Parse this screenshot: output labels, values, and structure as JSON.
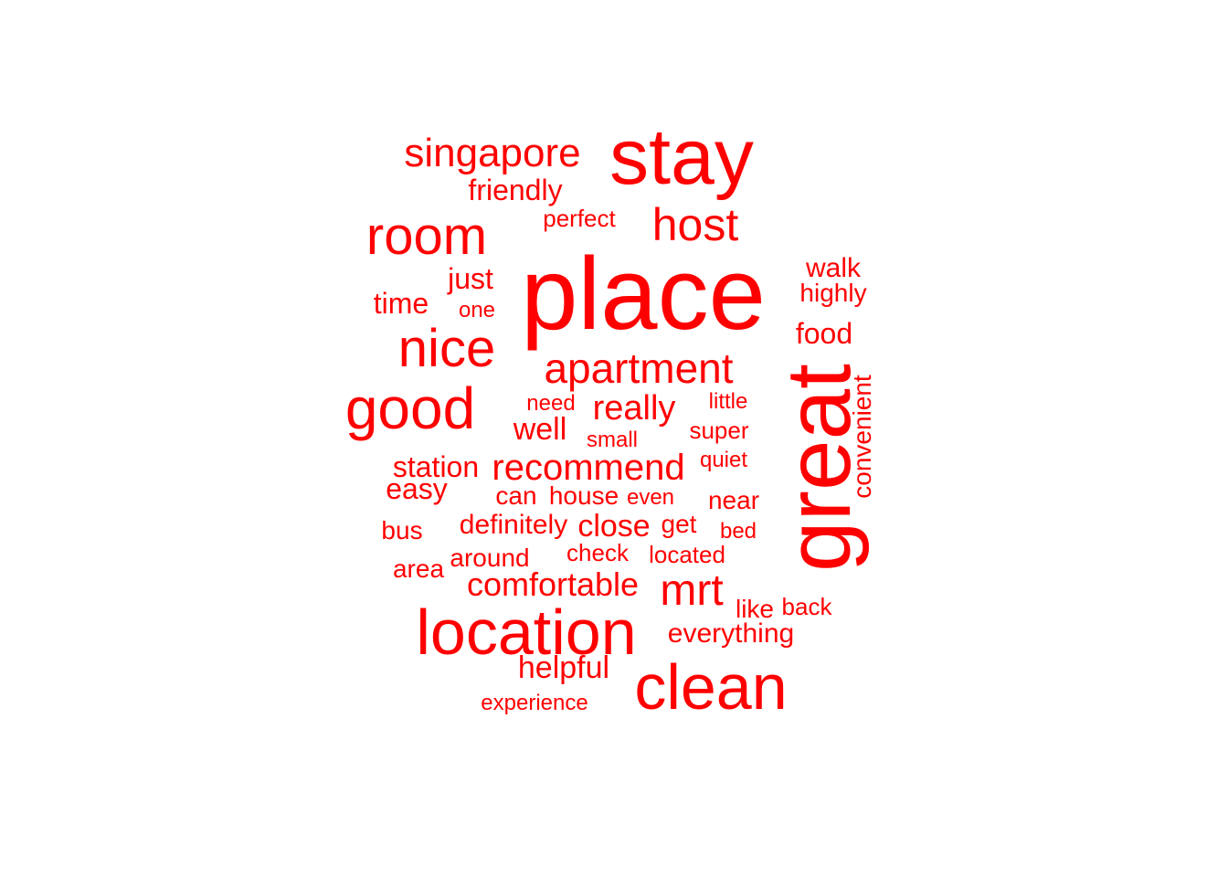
{
  "color": "#ff0000",
  "words": [
    {
      "text": "place",
      "rotated": false
    },
    {
      "text": "stay",
      "rotated": false
    },
    {
      "text": "great",
      "rotated": true
    },
    {
      "text": "location",
      "rotated": false
    },
    {
      "text": "clean",
      "rotated": false
    },
    {
      "text": "good",
      "rotated": false
    },
    {
      "text": "room",
      "rotated": false
    },
    {
      "text": "nice",
      "rotated": false
    },
    {
      "text": "host",
      "rotated": false
    },
    {
      "text": "singapore",
      "rotated": false
    },
    {
      "text": "apartment",
      "rotated": false
    },
    {
      "text": "recommend",
      "rotated": false
    },
    {
      "text": "mrt",
      "rotated": false
    },
    {
      "text": "comfortable",
      "rotated": false
    },
    {
      "text": "really",
      "rotated": false
    },
    {
      "text": "close",
      "rotated": false
    },
    {
      "text": "helpful",
      "rotated": false
    },
    {
      "text": "everything",
      "rotated": false
    },
    {
      "text": "station",
      "rotated": false
    },
    {
      "text": "just",
      "rotated": false
    },
    {
      "text": "friendly",
      "rotated": false
    },
    {
      "text": "well",
      "rotated": false
    },
    {
      "text": "walk",
      "rotated": false
    },
    {
      "text": "definitely",
      "rotated": false
    },
    {
      "text": "convenient",
      "rotated": true
    },
    {
      "text": "time",
      "rotated": false
    },
    {
      "text": "easy",
      "rotated": false
    },
    {
      "text": "food",
      "rotated": false
    },
    {
      "text": "house",
      "rotated": false
    },
    {
      "text": "near",
      "rotated": false
    },
    {
      "text": "highly",
      "rotated": false
    },
    {
      "text": "around",
      "rotated": false
    },
    {
      "text": "can",
      "rotated": false
    },
    {
      "text": "bus",
      "rotated": false
    },
    {
      "text": "area",
      "rotated": false
    },
    {
      "text": "perfect",
      "rotated": false
    },
    {
      "text": "check",
      "rotated": false
    },
    {
      "text": "get",
      "rotated": false
    },
    {
      "text": "located",
      "rotated": false
    },
    {
      "text": "super",
      "rotated": false
    },
    {
      "text": "like",
      "rotated": false
    },
    {
      "text": "back",
      "rotated": false
    },
    {
      "text": "need",
      "rotated": false
    },
    {
      "text": "small",
      "rotated": false
    },
    {
      "text": "even",
      "rotated": false
    },
    {
      "text": "one",
      "rotated": false
    },
    {
      "text": "quiet",
      "rotated": false
    },
    {
      "text": "little",
      "rotated": false
    },
    {
      "text": "bed",
      "rotated": false
    },
    {
      "text": "experience",
      "rotated": false
    }
  ]
}
